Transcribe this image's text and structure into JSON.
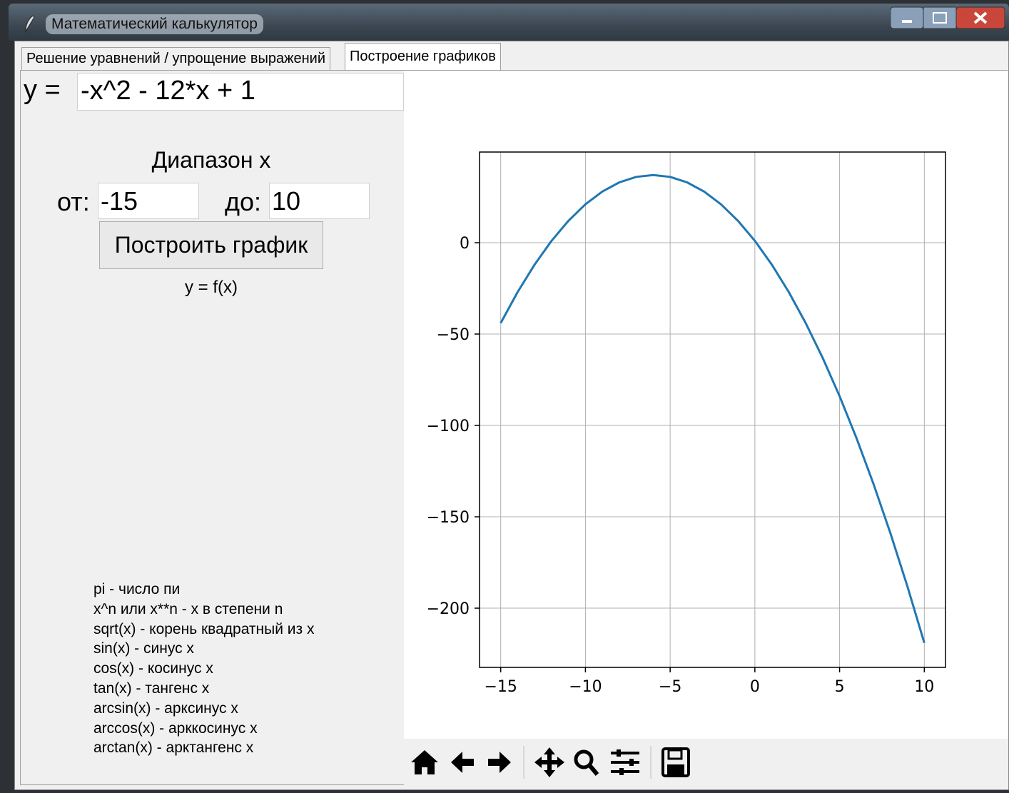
{
  "window": {
    "title": "Математический калькулятор"
  },
  "tabs": [
    "Решение уравнений / упрощение выражений",
    "Построение графиков"
  ],
  "formula": {
    "label": "y =",
    "value": "-x^2 - 12*x + 1"
  },
  "range": {
    "title": "Диапазон x",
    "from_label": "от:",
    "from_value": "-15",
    "to_label": "до:",
    "to_value": "10"
  },
  "button": "Построить график",
  "hint": "y = f(x)",
  "help": [
    "pi - число пи",
    "x^n или x**n - x в степени n",
    "sqrt(x) - корень квадратный из x",
    "sin(x) - синус x",
    "cos(x) - косинус x",
    "tan(x) - тангенс x",
    "arcsin(x) - арксинус x",
    "arccos(x) - арккосинус x",
    "arctan(x) - арктангенс x"
  ],
  "chart_data": {
    "type": "line",
    "color": "#1f77b4",
    "grid": true,
    "x": [
      -15,
      -14,
      -13,
      -12,
      -11,
      -10,
      -9,
      -8,
      -7,
      -6,
      -5,
      -4,
      -3,
      -2,
      -1,
      0,
      1,
      2,
      3,
      4,
      5,
      6,
      7,
      8,
      9,
      10
    ],
    "values": [
      -44,
      -27,
      -12,
      1,
      12,
      21,
      28,
      33,
      36,
      37,
      36,
      33,
      28,
      21,
      12,
      1,
      -12,
      -27,
      -44,
      -63,
      -84,
      -107,
      -132,
      -159,
      -188,
      -219
    ],
    "xlim": [
      -16.25,
      11.25
    ],
    "ylim": [
      -232.4,
      49.6
    ],
    "xticks": [
      {
        "value": -15,
        "label": "−15"
      },
      {
        "value": -10,
        "label": "−10"
      },
      {
        "value": -5,
        "label": "−5"
      },
      0,
      5,
      10
    ],
    "yticks": [
      0,
      {
        "value": -50,
        "label": "−50"
      },
      {
        "value": -100,
        "label": "−100"
      },
      {
        "value": -150,
        "label": "−150"
      },
      {
        "value": -200,
        "label": "−200"
      }
    ]
  }
}
